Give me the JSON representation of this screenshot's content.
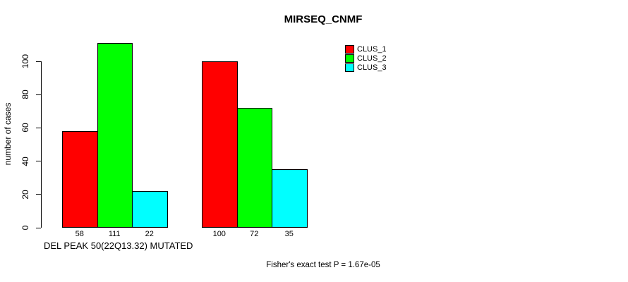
{
  "chart_data": {
    "type": "bar",
    "title": "MIRSEQ_CNMF",
    "ylabel": "number of cases",
    "xlabel": "DEL PEAK 50(22Q13.32) MUTATED",
    "annotation": "Fisher's exact test P = 1.67e-05",
    "ylim": [
      0,
      111
    ],
    "yticks": [
      0,
      20,
      40,
      60,
      80,
      100
    ],
    "grid": false,
    "n_groups": 2,
    "series": [
      {
        "name": "CLUS_1",
        "color": "#ff0000",
        "values": [
          58,
          100
        ]
      },
      {
        "name": "CLUS_2",
        "color": "#00ff00",
        "values": [
          111,
          72
        ]
      },
      {
        "name": "CLUS_3",
        "color": "#00ffff",
        "values": [
          22,
          35
        ]
      }
    ],
    "bar_value_labels": [
      [
        58,
        111,
        22
      ],
      [
        100,
        72,
        35
      ]
    ],
    "legend_position": "top-right",
    "colors": {
      "axis": "#000000",
      "text": "#000000",
      "background": "#ffffff"
    }
  }
}
